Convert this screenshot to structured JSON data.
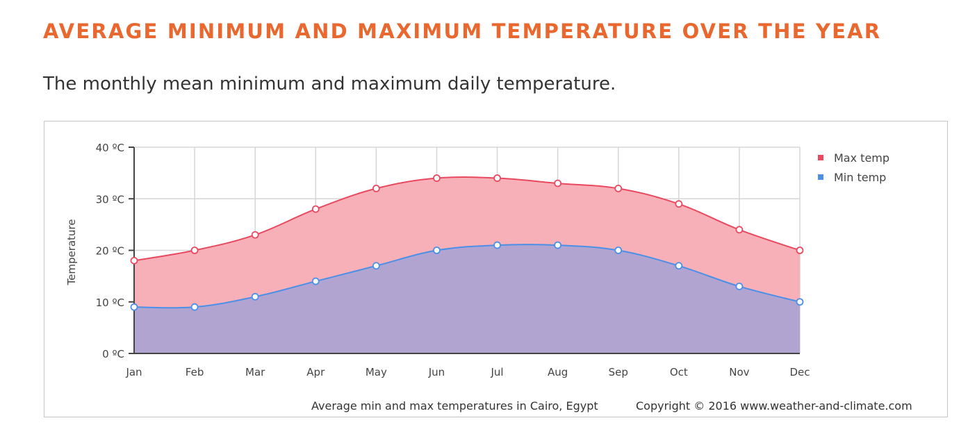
{
  "title": "AVERAGE MINIMUM AND MAXIMUM TEMPERATURE OVER THE YEAR",
  "subtitle": "The monthly mean minimum and maximum daily temperature.",
  "chart_data": {
    "type": "area",
    "categories": [
      "Jan",
      "Feb",
      "Mar",
      "Apr",
      "May",
      "Jun",
      "Jul",
      "Aug",
      "Sep",
      "Oct",
      "Nov",
      "Dec"
    ],
    "series": [
      {
        "name": "Max temp",
        "color": "#e8495f",
        "fill": "#f7b0b8",
        "values": [
          18,
          20,
          23,
          28,
          32,
          34,
          34,
          33,
          32,
          29,
          24,
          20
        ]
      },
      {
        "name": "Min temp",
        "color": "#4a8fe8",
        "fill": "#ada3d1",
        "values": [
          9,
          9,
          11,
          14,
          17,
          20,
          21,
          21,
          20,
          17,
          13,
          10
        ]
      }
    ],
    "ylabel": "Temperature",
    "ylim": [
      0,
      40
    ],
    "yticks": [
      "0 ºC",
      "10 ºC",
      "20 ºC",
      "30 ºC",
      "40 ºC"
    ],
    "grid": true,
    "legend": "top-right",
    "caption": "Average min and max temperatures in Cairo, Egypt",
    "copyright": "Copyright © 2016 www.weather-and-climate.com"
  }
}
